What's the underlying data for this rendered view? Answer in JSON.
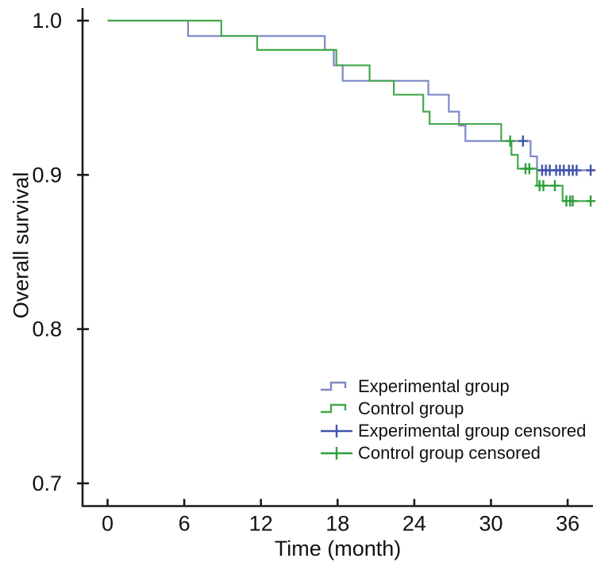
{
  "chart_data": {
    "type": "line",
    "subtype": "kaplan-meier-step",
    "title": "",
    "xlabel": "Time (month)",
    "ylabel": "Overall survival",
    "x_ticks": [
      0,
      6,
      12,
      18,
      24,
      30,
      36
    ],
    "x_tick_labels": [
      "0",
      "6",
      "12",
      "18",
      "24",
      "30",
      "36"
    ],
    "y_ticks": [
      1.0,
      0.9,
      0.8,
      0.7
    ],
    "y_tick_labels": [
      "1.0",
      "0.9",
      "0.8",
      "0.7"
    ],
    "xlim": [
      -2,
      38
    ],
    "ylim": [
      0.685,
      1.008
    ],
    "grid": "off",
    "legend_position": "lower-right-inside",
    "series": [
      {
        "name": "Experimental group",
        "color": "#7C88C5",
        "censor_color": "#4253A9",
        "start": [
          0,
          1.0
        ],
        "drops": [
          [
            6.3,
            0.99
          ],
          [
            17.0,
            0.981
          ],
          [
            17.7,
            0.971
          ],
          [
            18.4,
            0.961
          ],
          [
            25.1,
            0.952
          ],
          [
            26.7,
            0.941
          ],
          [
            27.5,
            0.932
          ],
          [
            28.0,
            0.922
          ],
          [
            33.1,
            0.912
          ],
          [
            33.6,
            0.903
          ]
        ],
        "end_time": 37.9,
        "censored": [
          [
            32.5,
            0.922
          ],
          [
            34.0,
            0.903
          ],
          [
            34.3,
            0.903
          ],
          [
            34.6,
            0.903
          ],
          [
            35.1,
            0.903
          ],
          [
            35.4,
            0.903
          ],
          [
            35.7,
            0.903
          ],
          [
            36.1,
            0.903
          ],
          [
            36.4,
            0.903
          ],
          [
            36.7,
            0.903
          ],
          [
            37.8,
            0.903
          ]
        ]
      },
      {
        "name": "Control group",
        "color": "#44A84C",
        "censor_color": "#2F9F3C",
        "start": [
          0,
          1.0
        ],
        "drops": [
          [
            8.9,
            0.99
          ],
          [
            11.7,
            0.981
          ],
          [
            17.9,
            0.971
          ],
          [
            20.5,
            0.961
          ],
          [
            22.4,
            0.952
          ],
          [
            24.7,
            0.941
          ],
          [
            25.2,
            0.933
          ],
          [
            30.8,
            0.922
          ],
          [
            31.6,
            0.913
          ],
          [
            32.1,
            0.904
          ],
          [
            33.6,
            0.893
          ],
          [
            35.6,
            0.883
          ]
        ],
        "end_time": 37.9,
        "censored": [
          [
            31.5,
            0.922
          ],
          [
            32.7,
            0.904
          ],
          [
            33.0,
            0.904
          ],
          [
            33.8,
            0.893
          ],
          [
            34.1,
            0.893
          ],
          [
            35.0,
            0.893
          ],
          [
            35.9,
            0.883
          ],
          [
            36.2,
            0.883
          ],
          [
            36.4,
            0.883
          ],
          [
            37.8,
            0.883
          ]
        ]
      }
    ],
    "legend": [
      {
        "label": "Experimental group",
        "glyph": "step",
        "color": "#7C88C5"
      },
      {
        "label": "Control group",
        "glyph": "step",
        "color": "#44A84C"
      },
      {
        "label": "Experimental group censored",
        "glyph": "plus",
        "color": "#4253A9"
      },
      {
        "label": "Control group censored",
        "glyph": "plus",
        "color": "#2F9F3C"
      }
    ],
    "axis_color": "#1A1A1A"
  }
}
